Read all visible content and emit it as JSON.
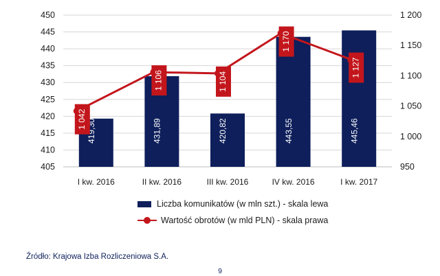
{
  "chart_data": {
    "type": "bar",
    "categories": [
      "I kw. 2016",
      "II kw. 2016",
      "III kw. 2016",
      "IV kw. 2016",
      "I kw. 2017"
    ],
    "series": [
      {
        "name": "Liczba komunikatów (w mln szt.) - skala lewa",
        "type": "bar",
        "axis": "left",
        "color": "#0e1f5b",
        "values": [
          419.3,
          431.89,
          420.82,
          443.55,
          445.46
        ],
        "labels": [
          "419,30",
          "431,89",
          "420,82",
          "443,55",
          "445,46"
        ]
      },
      {
        "name": "Wartość obrotów (w mld PLN) - skala prawa",
        "type": "line",
        "axis": "right",
        "color": "#c3161c",
        "values": [
          1042,
          1106,
          1104,
          1170,
          1127
        ],
        "labels": [
          "1 042",
          "1 106",
          "1 104",
          "1 170",
          "1 127"
        ]
      }
    ],
    "y_left": {
      "min": 405,
      "max": 450,
      "ticks": [
        "405",
        "410",
        "415",
        "420",
        "425",
        "430",
        "435",
        "440",
        "445",
        "450"
      ]
    },
    "y_right": {
      "min": 950,
      "max": 1200,
      "ticks": [
        "950",
        "1 000",
        "1 050",
        "1 100",
        "1 150",
        "1 200"
      ]
    },
    "grid": "horizontal",
    "legend_position": "bottom"
  },
  "source": "Źródło: Krajowa Izba Rozliczeniowa S.A.",
  "page_number": "9"
}
